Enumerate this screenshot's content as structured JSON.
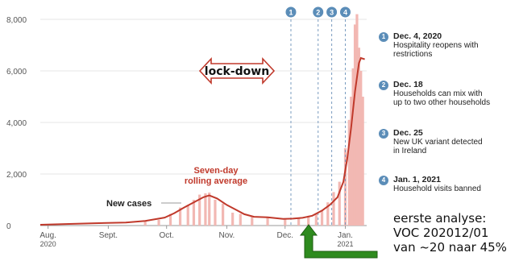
{
  "chart_data": {
    "type": "bar",
    "title": "",
    "xlabel": "",
    "ylabel": "",
    "ylim": [
      0,
      8500
    ],
    "yticks": [
      "0",
      "2,000",
      "4,000",
      "6,000",
      "8,000"
    ],
    "xticks": [
      {
        "label": "Aug.",
        "sub": "2020",
        "date": "2020-08-01"
      },
      {
        "label": "Sept.",
        "sub": "",
        "date": "2020-09-01"
      },
      {
        "label": "Oct.",
        "sub": "",
        "date": "2020-10-01"
      },
      {
        "label": "Nov.",
        "sub": "",
        "date": "2020-11-01"
      },
      {
        "label": "Dec.",
        "sub": "",
        "date": "2020-12-01"
      },
      {
        "label": "Jan.",
        "sub": "2021",
        "date": "2021-01-01"
      }
    ],
    "series": [
      {
        "name": "Seven-day rolling average",
        "color": "#c0392b",
        "points": [
          [
            "2020-07-28",
            30
          ],
          [
            "2020-08-10",
            60
          ],
          [
            "2020-08-25",
            90
          ],
          [
            "2020-09-10",
            120
          ],
          [
            "2020-09-20",
            180
          ],
          [
            "2020-09-30",
            310
          ],
          [
            "2020-10-05",
            480
          ],
          [
            "2020-10-10",
            700
          ],
          [
            "2020-10-15",
            900
          ],
          [
            "2020-10-20",
            1100
          ],
          [
            "2020-10-23",
            1170
          ],
          [
            "2020-10-27",
            1050
          ],
          [
            "2020-11-01",
            800
          ],
          [
            "2020-11-06",
            600
          ],
          [
            "2020-11-10",
            440
          ],
          [
            "2020-11-15",
            340
          ],
          [
            "2020-11-22",
            320
          ],
          [
            "2020-11-30",
            260
          ],
          [
            "2020-12-05",
            270
          ],
          [
            "2020-12-10",
            300
          ],
          [
            "2020-12-15",
            380
          ],
          [
            "2020-12-20",
            580
          ],
          [
            "2020-12-24",
            800
          ],
          [
            "2020-12-28",
            1100
          ],
          [
            "2020-12-31",
            1700
          ],
          [
            "2021-01-02",
            2600
          ],
          [
            "2021-01-04",
            3800
          ],
          [
            "2021-01-06",
            5200
          ],
          [
            "2021-01-08",
            6300
          ],
          [
            "2021-01-09",
            6500
          ],
          [
            "2021-01-11",
            6450
          ]
        ]
      },
      {
        "name": "New cases",
        "color": "#f2b8b3",
        "points": [
          [
            "2020-09-20",
            170
          ],
          [
            "2020-09-27",
            220
          ],
          [
            "2020-10-03",
            450
          ],
          [
            "2020-10-08",
            700
          ],
          [
            "2020-10-12",
            800
          ],
          [
            "2020-10-15",
            1000
          ],
          [
            "2020-10-18",
            1200
          ],
          [
            "2020-10-21",
            1250
          ],
          [
            "2020-10-23",
            1280
          ],
          [
            "2020-10-26",
            1000
          ],
          [
            "2020-10-30",
            850
          ],
          [
            "2020-11-04",
            500
          ],
          [
            "2020-11-08",
            450
          ],
          [
            "2020-11-14",
            350
          ],
          [
            "2020-11-22",
            330
          ],
          [
            "2020-12-01",
            260
          ],
          [
            "2020-12-08",
            280
          ],
          [
            "2020-12-13",
            350
          ],
          [
            "2020-12-17",
            450
          ],
          [
            "2020-12-20",
            600
          ],
          [
            "2020-12-23",
            900
          ],
          [
            "2020-12-26",
            1300
          ],
          [
            "2020-12-29",
            1700
          ],
          [
            "2021-01-01",
            3000
          ],
          [
            "2021-01-03",
            4100
          ],
          [
            "2021-01-04",
            5000
          ],
          [
            "2021-01-05",
            6100
          ],
          [
            "2021-01-06",
            7800
          ],
          [
            "2021-01-07",
            8200
          ],
          [
            "2021-01-08",
            6900
          ],
          [
            "2021-01-09",
            6000
          ],
          [
            "2021-01-10",
            5000
          ]
        ]
      }
    ],
    "events": [
      {
        "num": "1",
        "date": "2020-12-04"
      },
      {
        "num": "2",
        "date": "2020-12-18"
      },
      {
        "num": "3",
        "date": "2020-12-25"
      },
      {
        "num": "4",
        "date": "2021-01-01"
      }
    ],
    "labels": {
      "rolling": [
        "Seven-day",
        "rolling average"
      ],
      "cases": "New cases",
      "lockdown": "lock-down"
    }
  },
  "annotations": [
    {
      "num": "1",
      "date": "Dec. 4, 2020",
      "lines": [
        "Hospitality reopens with",
        "restrictions"
      ]
    },
    {
      "num": "2",
      "date": "Dec. 18",
      "lines": [
        "Households can mix with",
        "up to two other households"
      ]
    },
    {
      "num": "3",
      "date": "Dec. 25",
      "lines": [
        "New UK variant detected",
        "in Ireland"
      ]
    },
    {
      "num": "4",
      "date": "Jan. 1, 2021",
      "lines": [
        "Household visits banned"
      ]
    }
  ],
  "note": {
    "line1": "eerste analyse:",
    "line2": "VOC 202012/01",
    "line3": "van ~20 naar 45%"
  },
  "colors": {
    "accent": "#c0392b",
    "badge": "#5b8db8",
    "arrow": "#2e8b1e",
    "grid": "#e4e4e4"
  }
}
